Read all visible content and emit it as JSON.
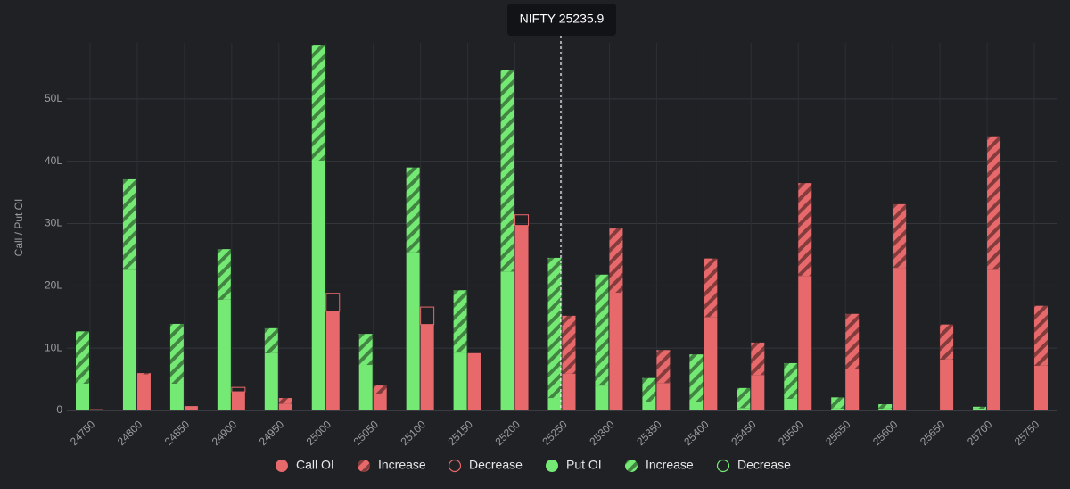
{
  "chart_data": {
    "type": "bar",
    "annotation": "NIFTY 25235.9",
    "y_label": "Call / Put OI",
    "categories": [
      "24750",
      "24800",
      "24850",
      "24900",
      "24950",
      "25000",
      "25050",
      "25100",
      "25150",
      "25200",
      "25250",
      "25300",
      "25350",
      "25400",
      "25450",
      "25500",
      "25550",
      "25600",
      "25650",
      "25700",
      "25750"
    ],
    "series": [
      {
        "name": "Call OI",
        "color": "#e8696b",
        "style": "solid",
        "values": [
          0.2,
          5.8,
          0.7,
          3.0,
          1.1,
          15.9,
          2.7,
          13.8,
          9.2,
          29.7,
          5.9,
          18.9,
          4.4,
          15.0,
          5.7,
          21.6,
          6.6,
          22.9,
          8.2,
          22.6,
          7.2
        ]
      },
      {
        "name": "Increase",
        "color": "#e8696b",
        "style": "hatched",
        "values": [
          0,
          0.2,
          0,
          0,
          0.9,
          0,
          1.3,
          0,
          0,
          0,
          9.3,
          10.3,
          5.3,
          9.4,
          5.2,
          14.9,
          8.9,
          10.2,
          5.6,
          21.4,
          9.6
        ]
      },
      {
        "name": "Decrease",
        "color": "#e8696b",
        "style": "outline",
        "values": [
          0,
          0,
          0,
          0.7,
          0,
          2.9,
          0,
          2.8,
          0,
          1.7,
          0,
          0,
          0,
          0,
          0,
          0,
          0,
          0,
          0,
          0,
          0
        ]
      },
      {
        "name": "Put OI",
        "color": "#74ea74",
        "style": "solid",
        "values": [
          4.3,
          22.6,
          4.3,
          17.8,
          9.2,
          40.1,
          7.3,
          25.4,
          9.3,
          22.3,
          2.0,
          4.0,
          1.3,
          1.3,
          0.4,
          1.9,
          0.3,
          0.3,
          0.1,
          0.3,
          0
        ]
      },
      {
        "name": "Increase",
        "color": "#74ea74",
        "style": "hatched",
        "values": [
          8.4,
          14.5,
          9.6,
          8.1,
          4.0,
          18.6,
          5.0,
          13.6,
          10.0,
          32.3,
          22.5,
          17.8,
          3.9,
          7.7,
          3.2,
          5.7,
          1.8,
          0.7,
          0,
          0.3,
          0
        ]
      },
      {
        "name": "Decrease",
        "color": "#74ea74",
        "style": "outline",
        "values": [
          0,
          0,
          0,
          0,
          0,
          0,
          0,
          0,
          0,
          0,
          0,
          0,
          0,
          0,
          0,
          0,
          0,
          0,
          0,
          0,
          0
        ]
      }
    ],
    "ylim": [
      0,
      59
    ],
    "yticks": [
      0,
      {
        "value": 10,
        "label": "10L"
      },
      {
        "value": 20,
        "label": "20L"
      },
      {
        "value": 30,
        "label": "30L"
      },
      {
        "value": 40,
        "label": "40L"
      },
      {
        "value": 50,
        "label": "50L"
      }
    ],
    "grid": true
  }
}
